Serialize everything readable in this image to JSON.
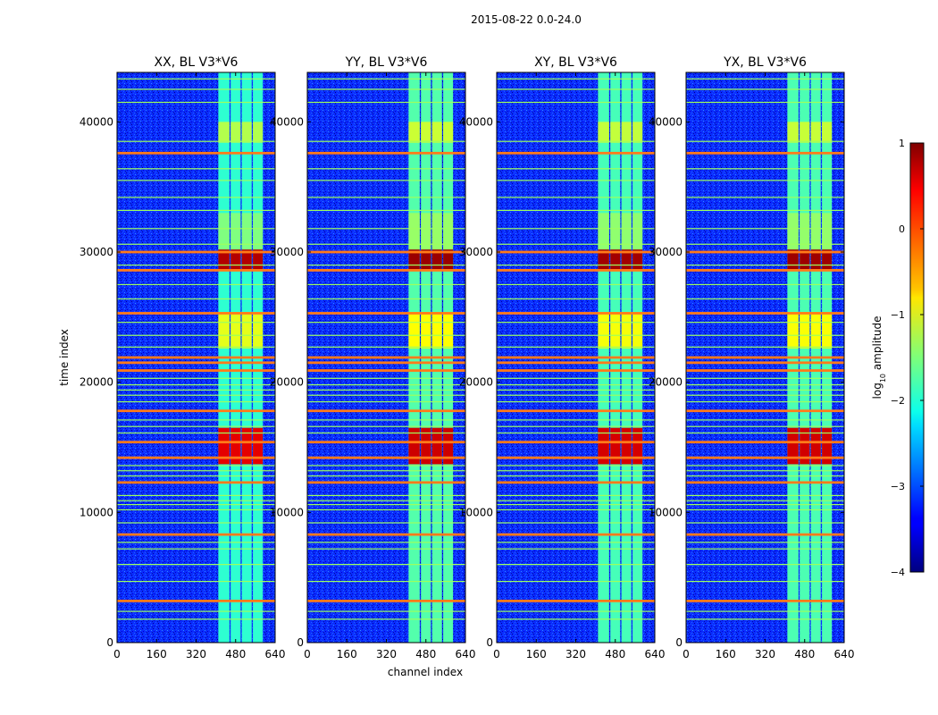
{
  "figure_title": "2015-08-22 0.0-24.0",
  "chart_data": {
    "type": "heatmap",
    "suptitle": "2015-08-22 0.0-24.0",
    "xlabel": "channel index",
    "ylabel": "time index",
    "xlim": [
      0,
      640
    ],
    "ylim": [
      0,
      43800
    ],
    "xticks": [
      0,
      160,
      320,
      480,
      640
    ],
    "yticks": [
      0,
      10000,
      20000,
      30000,
      40000
    ],
    "panels": [
      {
        "title": "XX, BL V3*V6",
        "pol": "XX"
      },
      {
        "title": "YY, BL V3*V6",
        "pol": "YY"
      },
      {
        "title": "XY, BL V3*V6",
        "pol": "XY"
      },
      {
        "title": "YX, BL V3*V6",
        "pol": "YX"
      }
    ],
    "colorbar": {
      "label": "log10 amplitude",
      "label_main": "log",
      "label_sub": "10",
      "label_rest": " amplitude",
      "range": [
        -4,
        1
      ],
      "ticks": [
        1,
        0,
        -1,
        -2,
        -3,
        -4
      ],
      "tick_labels": [
        "1",
        "0",
        "−1",
        "−2",
        "−3",
        "−4"
      ],
      "colormap": "jet"
    },
    "signal_band_channels": [
      410,
      600
    ],
    "signal_subbands": [
      [
        410,
        455
      ],
      [
        460,
        500
      ],
      [
        505,
        545
      ],
      [
        550,
        590
      ]
    ],
    "rfi_times_strong": [
      3200,
      8300,
      12300,
      14200,
      15400,
      17800,
      20900,
      21500,
      21900,
      25300,
      28600,
      30000,
      37600
    ],
    "rfi_times_weak": [
      1800,
      2400,
      4700,
      6000,
      7200,
      7700,
      9200,
      10200,
      10600,
      10900,
      11300,
      12800,
      13200,
      13600,
      16100,
      16600,
      17100,
      18500,
      19000,
      19400,
      19800,
      20300,
      22700,
      23600,
      24600,
      26400,
      27500,
      29000,
      30600,
      31800,
      33200,
      34200,
      35500,
      36400,
      38500,
      41500,
      42500,
      43300
    ],
    "bright_time_ranges": [
      [
        13700,
        16500,
        0.9
      ],
      [
        28600,
        30200,
        0.95
      ],
      [
        22600,
        25400,
        0.6
      ],
      [
        38400,
        40000,
        0.55
      ],
      [
        30200,
        33000,
        0.5
      ]
    ]
  }
}
